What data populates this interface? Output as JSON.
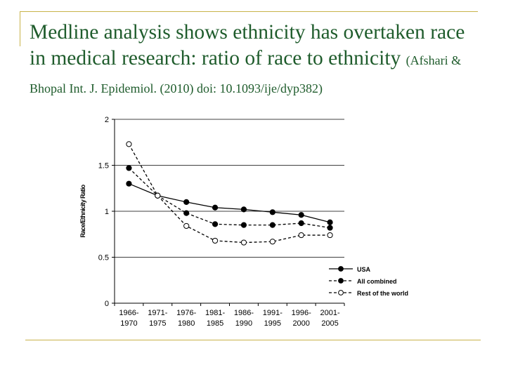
{
  "slide": {
    "title_line1": "Medline analysis shows ethnicity has overtaken race",
    "title_line2": "in medical research: ratio of race to ethnicity",
    "citation_part1": "(Afshari &",
    "citation_part2": "Bhopal Int. J. Epidemiol. (2010) doi: 10.1093/ije/dyp382)"
  },
  "chart_data": {
    "type": "line",
    "title": "",
    "xlabel": "",
    "ylabel": "Race/Ethnicity Ratio",
    "ylim": [
      0,
      2
    ],
    "yticks": [
      "0",
      "0.5",
      "1",
      "1.5",
      "2"
    ],
    "gridlines": [
      0.5,
      1,
      1.5,
      2
    ],
    "categories": [
      [
        "1966-",
        "1970"
      ],
      [
        "1971-",
        "1975"
      ],
      [
        "1976-",
        "1980"
      ],
      [
        "1981-",
        "1985"
      ],
      [
        "1986-",
        "1990"
      ],
      [
        "1991-",
        "1995"
      ],
      [
        "1996-",
        "2000"
      ],
      [
        "2001-",
        "2005"
      ]
    ],
    "legend_position": "bottom-right",
    "series": [
      {
        "name": "USA",
        "style": "solid",
        "marker": "filled",
        "values": [
          1.3,
          1.17,
          1.1,
          1.04,
          1.02,
          0.99,
          0.96,
          0.88
        ]
      },
      {
        "name": "All combined",
        "style": "dashed",
        "marker": "filled",
        "values": [
          1.47,
          1.17,
          0.98,
          0.86,
          0.85,
          0.85,
          0.87,
          0.82
        ]
      },
      {
        "name": "Rest of the world",
        "style": "dashed",
        "marker": "open",
        "values": [
          1.73,
          1.17,
          0.84,
          0.68,
          0.66,
          0.67,
          0.74,
          0.74
        ]
      }
    ]
  },
  "colors": {
    "title": "#1f5c2c",
    "accent_line": "#c8b34a",
    "ink": "#000000"
  }
}
